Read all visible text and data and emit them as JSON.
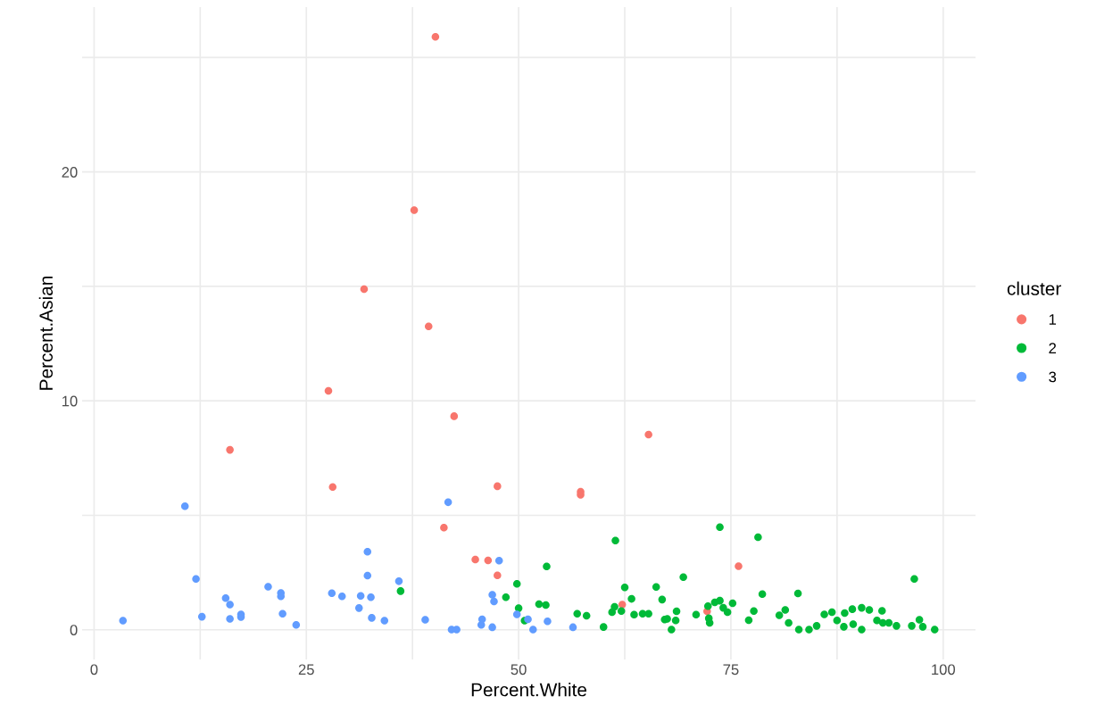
{
  "chart_data": {
    "type": "scatter",
    "xlabel": "Percent.White",
    "ylabel": "Percent.Asian",
    "legend_title": "cluster",
    "legend": "right",
    "grid": true,
    "marker": "circle",
    "xlim": [
      -1.4,
      103.8
    ],
    "ylim": [
      -1.3,
      27.2
    ],
    "xticks": [
      0,
      {
        "value": 12.5,
        "label": null
      },
      25,
      {
        "value": 37.5,
        "label": null
      },
      50,
      {
        "value": 62.5,
        "label": null
      },
      75,
      {
        "value": 87.5,
        "label": null
      },
      100
    ],
    "yticks": [
      0,
      {
        "value": 5,
        "label": null
      },
      10,
      {
        "value": 15,
        "label": null
      },
      20,
      {
        "value": 25,
        "label": null
      }
    ],
    "series": [
      {
        "name": "1",
        "color": "#f8766d",
        "x": [
          16.0,
          28.1,
          27.6,
          31.8,
          37.7,
          40.2,
          39.4,
          42.4,
          41.2,
          44.9,
          46.4,
          47.5,
          47.5,
          57.3,
          57.3,
          62.2,
          65.3,
          72.2,
          75.9
        ],
        "values": [
          7.86,
          6.24,
          10.44,
          14.88,
          18.33,
          25.9,
          13.25,
          9.33,
          4.46,
          3.07,
          3.03,
          6.27,
          2.38,
          6.03,
          5.9,
          1.1,
          8.53,
          0.81,
          2.78
        ]
      },
      {
        "name": "2",
        "color": "#00ba38",
        "x": [
          36.1,
          48.5,
          49.8,
          50.0,
          50.7,
          53.3,
          52.4,
          53.2,
          56.9,
          58.0,
          60.0,
          61.4,
          61.0,
          61.3,
          62.1,
          62.5,
          63.3,
          63.6,
          64.6,
          65.3,
          66.2,
          66.9,
          67.2,
          67.5,
          68.6,
          68.5,
          68.0,
          69.4,
          70.9,
          72.3,
          72.5,
          72.4,
          73.1,
          73.7,
          73.7,
          74.1,
          74.6,
          75.2,
          78.2,
          78.7,
          77.7,
          77.1,
          80.7,
          81.4,
          81.8,
          82.9,
          83.0,
          84.2,
          85.1,
          86.0,
          86.9,
          87.5,
          88.3,
          88.4,
          89.3,
          89.4,
          90.4,
          90.4,
          91.3,
          92.2,
          92.8,
          92.9,
          93.6,
          94.5,
          96.3,
          96.6,
          97.2,
          97.6,
          99.0
        ],
        "values": [
          1.69,
          1.42,
          2.01,
          0.94,
          0.4,
          2.77,
          1.12,
          1.08,
          0.7,
          0.61,
          0.12,
          3.9,
          0.77,
          1.0,
          0.82,
          1.85,
          1.35,
          0.66,
          0.7,
          0.7,
          1.87,
          1.32,
          0.45,
          0.48,
          0.81,
          0.41,
          0.01,
          2.3,
          0.66,
          1.03,
          0.3,
          0.5,
          1.2,
          1.27,
          4.48,
          0.96,
          0.77,
          1.16,
          4.04,
          1.56,
          0.82,
          0.42,
          0.63,
          0.87,
          0.3,
          1.59,
          0.01,
          0.01,
          0.17,
          0.67,
          0.77,
          0.41,
          0.13,
          0.73,
          0.9,
          0.24,
          0.01,
          0.96,
          0.87,
          0.41,
          0.83,
          0.3,
          0.3,
          0.17,
          0.17,
          2.22,
          0.44,
          0.13,
          0.01
        ]
      },
      {
        "name": "3",
        "color": "#619cff",
        "x": [
          3.4,
          10.7,
          12.0,
          12.7,
          15.5,
          16.0,
          16.0,
          17.3,
          17.3,
          20.5,
          22.0,
          22.0,
          22.2,
          23.8,
          28.0,
          29.2,
          32.2,
          32.2,
          31.4,
          32.6,
          31.2,
          32.7,
          34.2,
          35.9,
          39.0,
          41.7,
          47.7,
          46.9,
          47.1,
          42.1,
          42.7,
          45.7,
          45.6,
          46.9,
          49.8,
          51.1,
          51.7,
          53.4,
          56.4
        ],
        "values": [
          0.4,
          5.4,
          2.22,
          0.57,
          1.38,
          1.1,
          0.48,
          0.67,
          0.56,
          1.88,
          1.61,
          1.46,
          0.7,
          0.21,
          1.6,
          1.46,
          3.41,
          2.37,
          1.48,
          1.42,
          0.95,
          0.52,
          0.4,
          2.12,
          0.44,
          5.57,
          3.02,
          1.53,
          1.24,
          0.01,
          0.01,
          0.46,
          0.21,
          0.11,
          0.67,
          0.46,
          0.01,
          0.37,
          0.11
        ]
      }
    ]
  }
}
